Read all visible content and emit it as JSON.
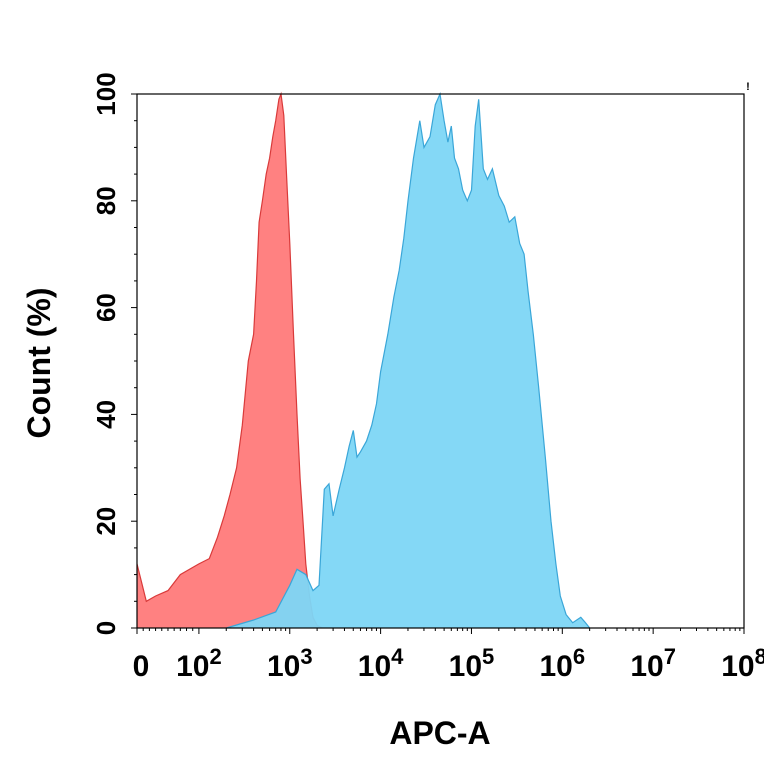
{
  "chart_data": {
    "type": "area",
    "xlabel": "APC-A",
    "ylabel": "Count  (%)",
    "x_scale": "log",
    "xlim": [
      0,
      100000000
    ],
    "ylim": [
      0,
      100
    ],
    "y_ticks": [
      0,
      20,
      40,
      60,
      80,
      100
    ],
    "x_ticks": [
      {
        "value": 0,
        "base": "0",
        "exp": ""
      },
      {
        "value": 100,
        "base": "10",
        "exp": "2"
      },
      {
        "value": 1000,
        "base": "10",
        "exp": "3"
      },
      {
        "value": 10000,
        "base": "10",
        "exp": "4"
      },
      {
        "value": 100000,
        "base": "10",
        "exp": "5"
      },
      {
        "value": 1000000,
        "base": "10",
        "exp": "6"
      },
      {
        "value": 10000000,
        "base": "10",
        "exp": "7"
      },
      {
        "value": 100000000,
        "base": "10",
        "exp": "8"
      }
    ],
    "corner_mark": "!",
    "series": [
      {
        "color": "#ff6b6b",
        "stroke": "#d93a3a",
        "opacity": 0.85,
        "points": [
          [
            0,
            12
          ],
          [
            15,
            5
          ],
          [
            30,
            6
          ],
          [
            50,
            7
          ],
          [
            70,
            10
          ],
          [
            100,
            12
          ],
          [
            130,
            13
          ],
          [
            160,
            17
          ],
          [
            190,
            21
          ],
          [
            220,
            25
          ],
          [
            260,
            30
          ],
          [
            300,
            38
          ],
          [
            350,
            50
          ],
          [
            400,
            55
          ],
          [
            430,
            65
          ],
          [
            460,
            76
          ],
          [
            500,
            80
          ],
          [
            550,
            85
          ],
          [
            600,
            88
          ],
          [
            650,
            92
          ],
          [
            700,
            95
          ],
          [
            760,
            99
          ],
          [
            800,
            100
          ],
          [
            860,
            96
          ],
          [
            920,
            85
          ],
          [
            1000,
            72
          ],
          [
            1100,
            55
          ],
          [
            1200,
            40
          ],
          [
            1300,
            28
          ],
          [
            1400,
            20
          ],
          [
            1500,
            12
          ],
          [
            1650,
            6
          ],
          [
            1800,
            2
          ],
          [
            2000,
            0.5
          ],
          [
            2300,
            0
          ]
        ]
      },
      {
        "color": "#7dd6f5",
        "stroke": "#3aa6d8",
        "opacity": 0.95,
        "points": [
          [
            200,
            0
          ],
          [
            400,
            1.5
          ],
          [
            700,
            3
          ],
          [
            1000,
            8
          ],
          [
            1200,
            11
          ],
          [
            1500,
            10
          ],
          [
            1800,
            7
          ],
          [
            2100,
            8
          ],
          [
            2400,
            26
          ],
          [
            2700,
            27
          ],
          [
            3000,
            21
          ],
          [
            3500,
            26
          ],
          [
            4000,
            30
          ],
          [
            4500,
            34
          ],
          [
            5000,
            37
          ],
          [
            5500,
            32
          ],
          [
            6000,
            33
          ],
          [
            7000,
            35
          ],
          [
            8000,
            38
          ],
          [
            9000,
            42
          ],
          [
            10000,
            48
          ],
          [
            12000,
            55
          ],
          [
            14000,
            62
          ],
          [
            16000,
            67
          ],
          [
            18000,
            73
          ],
          [
            20000,
            80
          ],
          [
            23000,
            88
          ],
          [
            27000,
            95
          ],
          [
            30000,
            90
          ],
          [
            35000,
            92
          ],
          [
            40000,
            98
          ],
          [
            45000,
            100
          ],
          [
            50000,
            95
          ],
          [
            55000,
            91
          ],
          [
            60000,
            94
          ],
          [
            65000,
            88
          ],
          [
            72000,
            86
          ],
          [
            80000,
            82
          ],
          [
            90000,
            80
          ],
          [
            100000,
            82
          ],
          [
            110000,
            94
          ],
          [
            120000,
            99
          ],
          [
            135000,
            86
          ],
          [
            150000,
            84
          ],
          [
            170000,
            86
          ],
          [
            200000,
            81
          ],
          [
            230000,
            79
          ],
          [
            260000,
            76
          ],
          [
            300000,
            77
          ],
          [
            340000,
            72
          ],
          [
            380000,
            70
          ],
          [
            420000,
            63
          ],
          [
            480000,
            55
          ],
          [
            550000,
            45
          ],
          [
            650000,
            32
          ],
          [
            750000,
            20
          ],
          [
            850000,
            12
          ],
          [
            950000,
            6
          ],
          [
            1100000,
            2.5
          ],
          [
            1300000,
            1
          ],
          [
            1600000,
            2
          ],
          [
            1800000,
            1
          ],
          [
            2000000,
            0
          ]
        ]
      }
    ]
  }
}
